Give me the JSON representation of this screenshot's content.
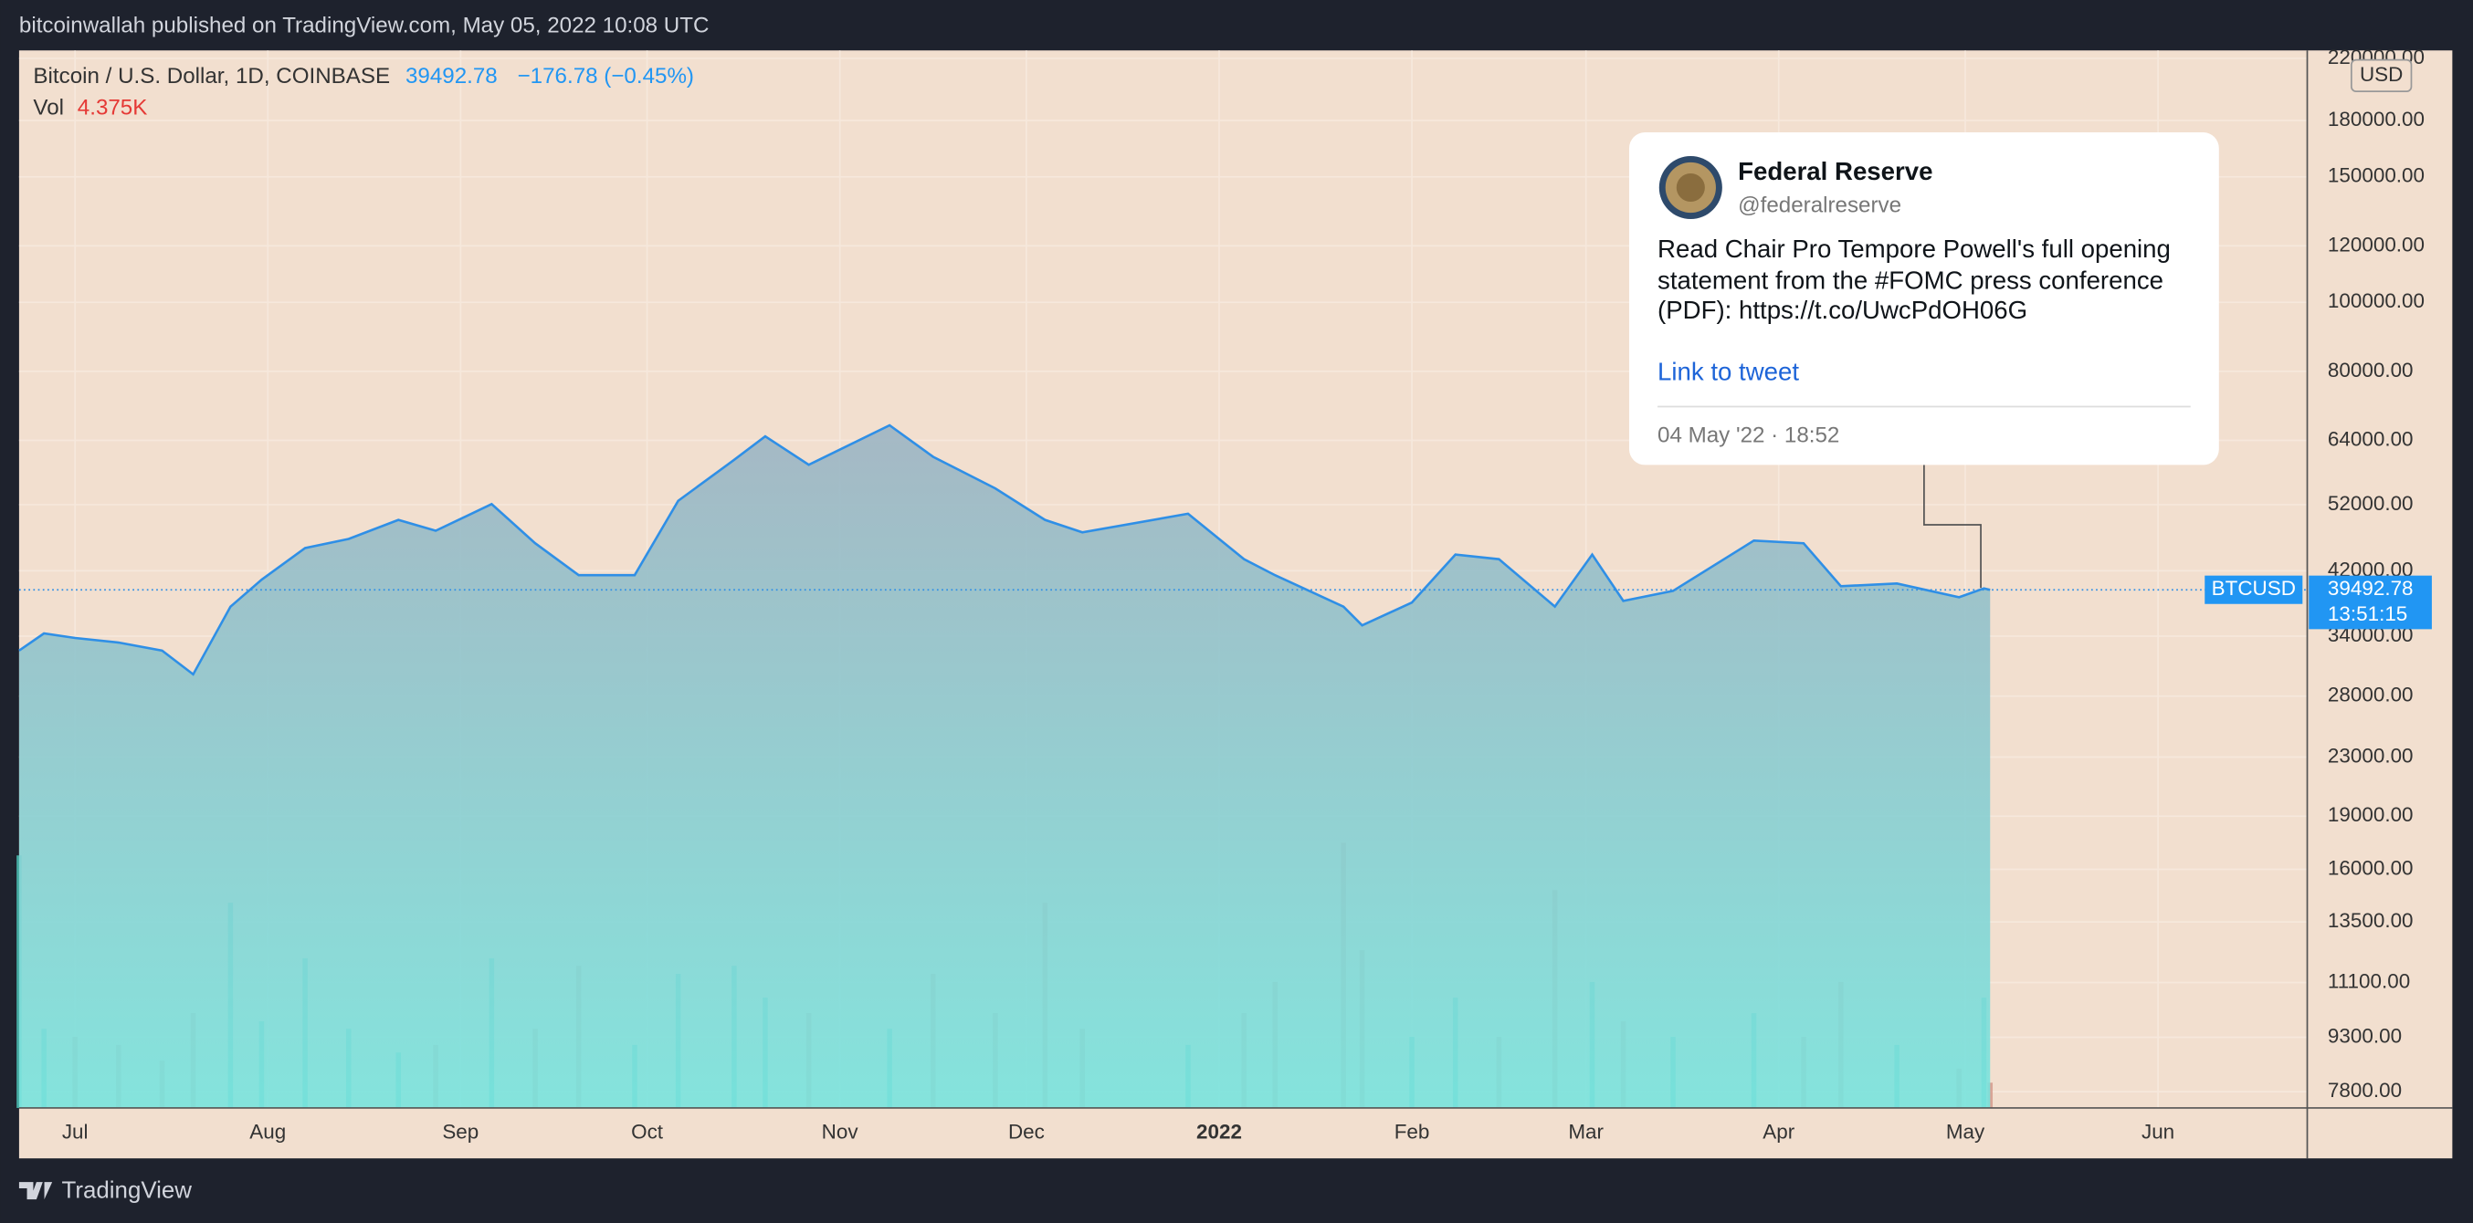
{
  "header": "bitcoinwallah published on TradingView.com, May 05, 2022 10:08 UTC",
  "footer": "TradingView",
  "chart_data": {
    "type": "area",
    "symbol_title": "Bitcoin / U.S. Dollar, 1D, COINBASE",
    "change_label": "−176.78 (−0.45%)",
    "volume_label": "4.375K",
    "currency": "USD",
    "countdown": "13:51:15",
    "log_scale": true,
    "grid": true,
    "x": [
      "2021-06-22",
      "2021-06-26",
      "2021-07-01",
      "2021-07-08",
      "2021-07-15",
      "2021-07-20",
      "2021-07-26",
      "2021-07-31",
      "2021-08-07",
      "2021-08-14",
      "2021-08-22",
      "2021-08-28",
      "2021-09-06",
      "2021-09-13",
      "2021-09-20",
      "2021-09-29",
      "2021-10-06",
      "2021-10-15",
      "2021-10-20",
      "2021-10-27",
      "2021-11-09",
      "2021-11-16",
      "2021-11-26",
      "2021-12-04",
      "2021-12-10",
      "2021-12-27",
      "2022-01-05",
      "2022-01-10",
      "2022-01-21",
      "2022-01-24",
      "2022-02-01",
      "2022-02-08",
      "2022-02-15",
      "2022-02-24",
      "2022-03-02",
      "2022-03-07",
      "2022-03-15",
      "2022-03-28",
      "2022-04-05",
      "2022-04-11",
      "2022-04-20",
      "2022-04-30",
      "2022-05-04",
      "2022-05-05"
    ],
    "series": [
      {
        "name": "BTCUSD",
        "color": "#2f8fe6",
        "area_top": "#9db4c3",
        "area_bottom": "#78e4de",
        "values": [
          32450,
          34300,
          33800,
          33300,
          32450,
          30050,
          37400,
          40800,
          45200,
          46550,
          49500,
          47800,
          52100,
          45900,
          41400,
          41400,
          52650,
          60100,
          64850,
          59150,
          67200,
          60700,
          54800,
          49500,
          47550,
          50500,
          43600,
          41400,
          37400,
          35200,
          37900,
          44250,
          43600,
          37400,
          44250,
          38100,
          39350,
          46300,
          45900,
          39950,
          40300,
          38550,
          39669.56,
          39492.78
        ]
      },
      {
        "name": "Vol",
        "up_color": "#4cc2b5",
        "down_color": "#d39a8c",
        "values": [
          43.7,
          13.7,
          12.3,
          10.9,
          8.2,
          16.4,
          35.5,
          15.0,
          25.9,
          13.7,
          9.6,
          10.9,
          25.9,
          13.7,
          24.6,
          10.9,
          23.2,
          24.6,
          19.1,
          16.4,
          13.7,
          23.2,
          16.4,
          35.5,
          13.7,
          10.9,
          16.4,
          21.8,
          45.9,
          27.3,
          12.3,
          19.1,
          12.3,
          37.7,
          21.8,
          15.0,
          12.3,
          16.4,
          12.3,
          21.8,
          10.9,
          6.8,
          19.1,
          4.375
        ]
      }
    ],
    "vol_ylim": [
      0,
      183
    ],
    "xlim": [
      "2021-06-22",
      "2022-06-25"
    ],
    "xticks": [
      {
        "value": "2021-07-01",
        "label": "Jul"
      },
      {
        "value": "2021-08-01",
        "label": "Aug"
      },
      {
        "value": "2021-09-01",
        "label": "Sep"
      },
      {
        "value": "2021-10-01",
        "label": "Oct"
      },
      {
        "value": "2021-11-01",
        "label": "Nov"
      },
      {
        "value": "2021-12-01",
        "label": "Dec"
      },
      {
        "value": "2022-01-01",
        "label": "2022"
      },
      {
        "value": "2022-02-01",
        "label": "Feb"
      },
      {
        "value": "2022-03-01",
        "label": "Mar"
      },
      {
        "value": "2022-04-01",
        "label": "Apr"
      },
      {
        "value": "2022-05-01",
        "label": "May"
      },
      {
        "value": "2022-06-01",
        "label": "Jun"
      }
    ],
    "ylim": [
      7400,
      225700
    ],
    "yticks": [
      {
        "value": 220000,
        "label": "220000.00"
      },
      {
        "value": 180000,
        "label": "180000.00"
      },
      {
        "value": 150000,
        "label": "150000.00"
      },
      {
        "value": 120000,
        "label": "120000.00"
      },
      {
        "value": 100000,
        "label": "100000.00"
      },
      {
        "value": 80000,
        "label": "80000.00"
      },
      {
        "value": 64000,
        "label": "64000.00"
      },
      {
        "value": 52000,
        "label": "52000.00"
      },
      {
        "value": 42000,
        "label": "42000.00"
      },
      {
        "value": 34000,
        "label": "34000.00"
      },
      {
        "value": 28000,
        "label": "28000.00"
      },
      {
        "value": 23000,
        "label": "23000.00"
      },
      {
        "value": 19000,
        "label": "19000.00"
      },
      {
        "value": 16000,
        "label": "16000.00"
      },
      {
        "value": 13500,
        "label": "13500.00"
      },
      {
        "value": 11100,
        "label": "11100.00"
      },
      {
        "value": 9300,
        "label": "9300.00"
      },
      {
        "value": 7800,
        "label": "7800.00"
      }
    ]
  },
  "tweet": {
    "name": "Federal Reserve",
    "handle": "@federalreserve",
    "lines": [
      "Read Chair Pro Tempore Powell's full opening",
      "statement from the #FOMC press conference",
      "(PDF): https://t.co/UwcPdOH06G"
    ],
    "link": "Link to tweet",
    "time": "04 May '22 · 18:52"
  }
}
